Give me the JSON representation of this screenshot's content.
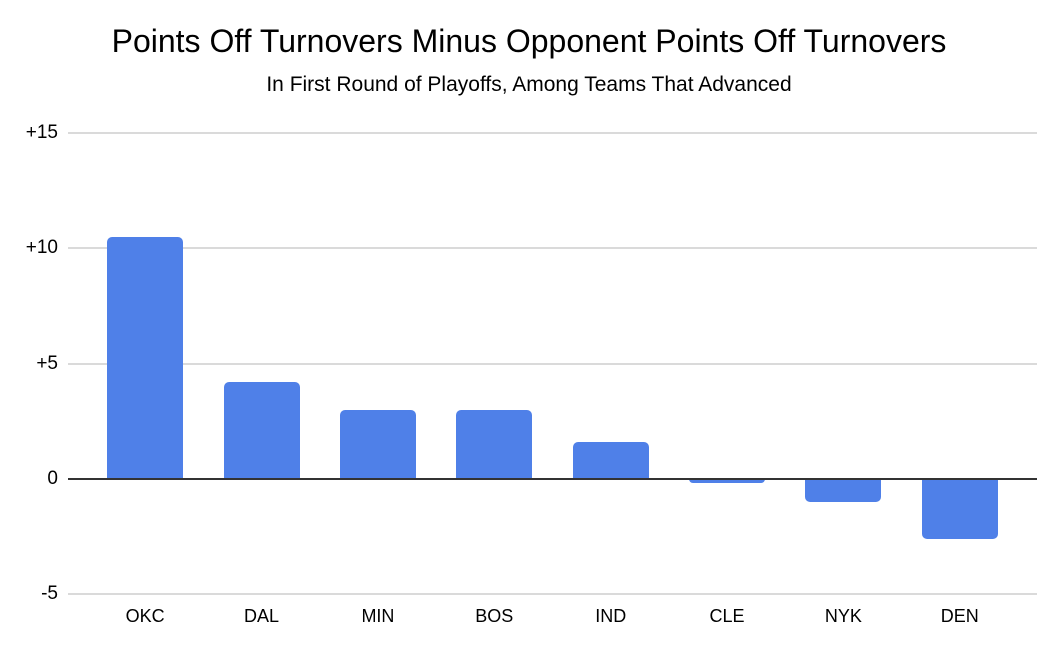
{
  "chart_data": {
    "type": "bar",
    "title": "Points Off Turnovers Minus Opponent Points Off Turnovers",
    "subtitle": "In First Round of Playoffs, Among Teams That Advanced",
    "categories": [
      "OKC",
      "DAL",
      "MIN",
      "BOS",
      "IND",
      "CLE",
      "NYK",
      "DEN"
    ],
    "values": [
      10.5,
      4.2,
      3.0,
      3.0,
      1.6,
      -0.2,
      -1.0,
      -2.6
    ],
    "xlabel": "",
    "ylabel": "",
    "ylim": [
      -5,
      15
    ],
    "yticks": [
      {
        "value": 15,
        "label": "+15"
      },
      {
        "value": 10,
        "label": "+10"
      },
      {
        "value": 5,
        "label": "+5"
      },
      {
        "value": 0,
        "label": "0"
      },
      {
        "value": -5,
        "label": "-5"
      }
    ],
    "grid": true,
    "legend": "none",
    "colors": {
      "bar": "#4f80e8",
      "gridline": "#dadada",
      "zero_line": "#333333",
      "text": "#000000",
      "background": "#ffffff"
    }
  }
}
